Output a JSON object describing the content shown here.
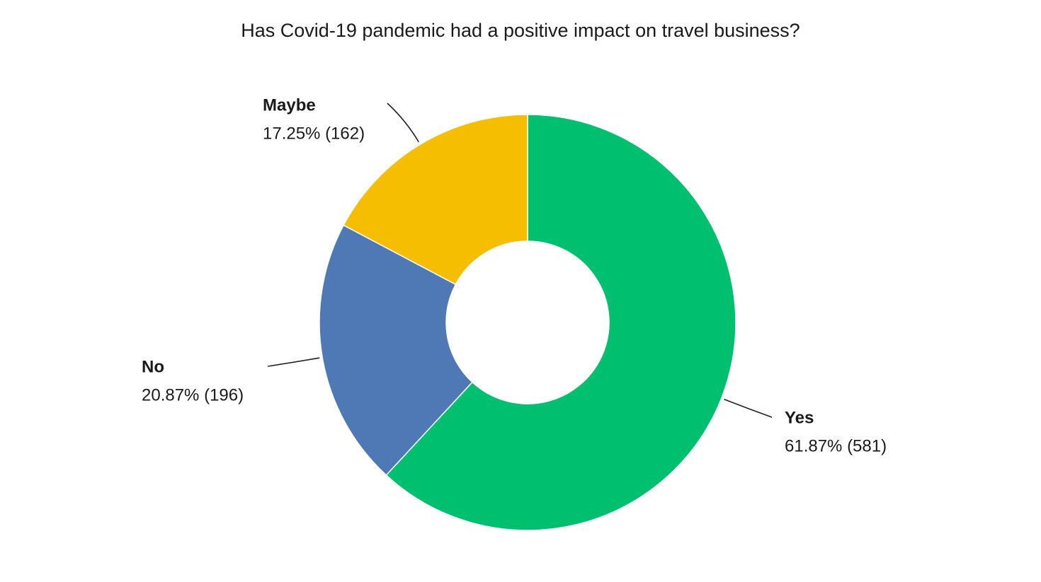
{
  "chart_data": {
    "type": "pie",
    "donut": true,
    "title": "Has Covid-19 pandemic had a positive impact on travel business?",
    "categories": [
      "Yes",
      "No",
      "Maybe"
    ],
    "values": [
      61.87,
      20.87,
      17.25
    ],
    "value_labels": [
      "61.87% (581)",
      "20.87% (196)",
      "17.25% (162)"
    ],
    "colors": [
      "#00bf6f",
      "#4f79b4",
      "#f6be00"
    ]
  }
}
